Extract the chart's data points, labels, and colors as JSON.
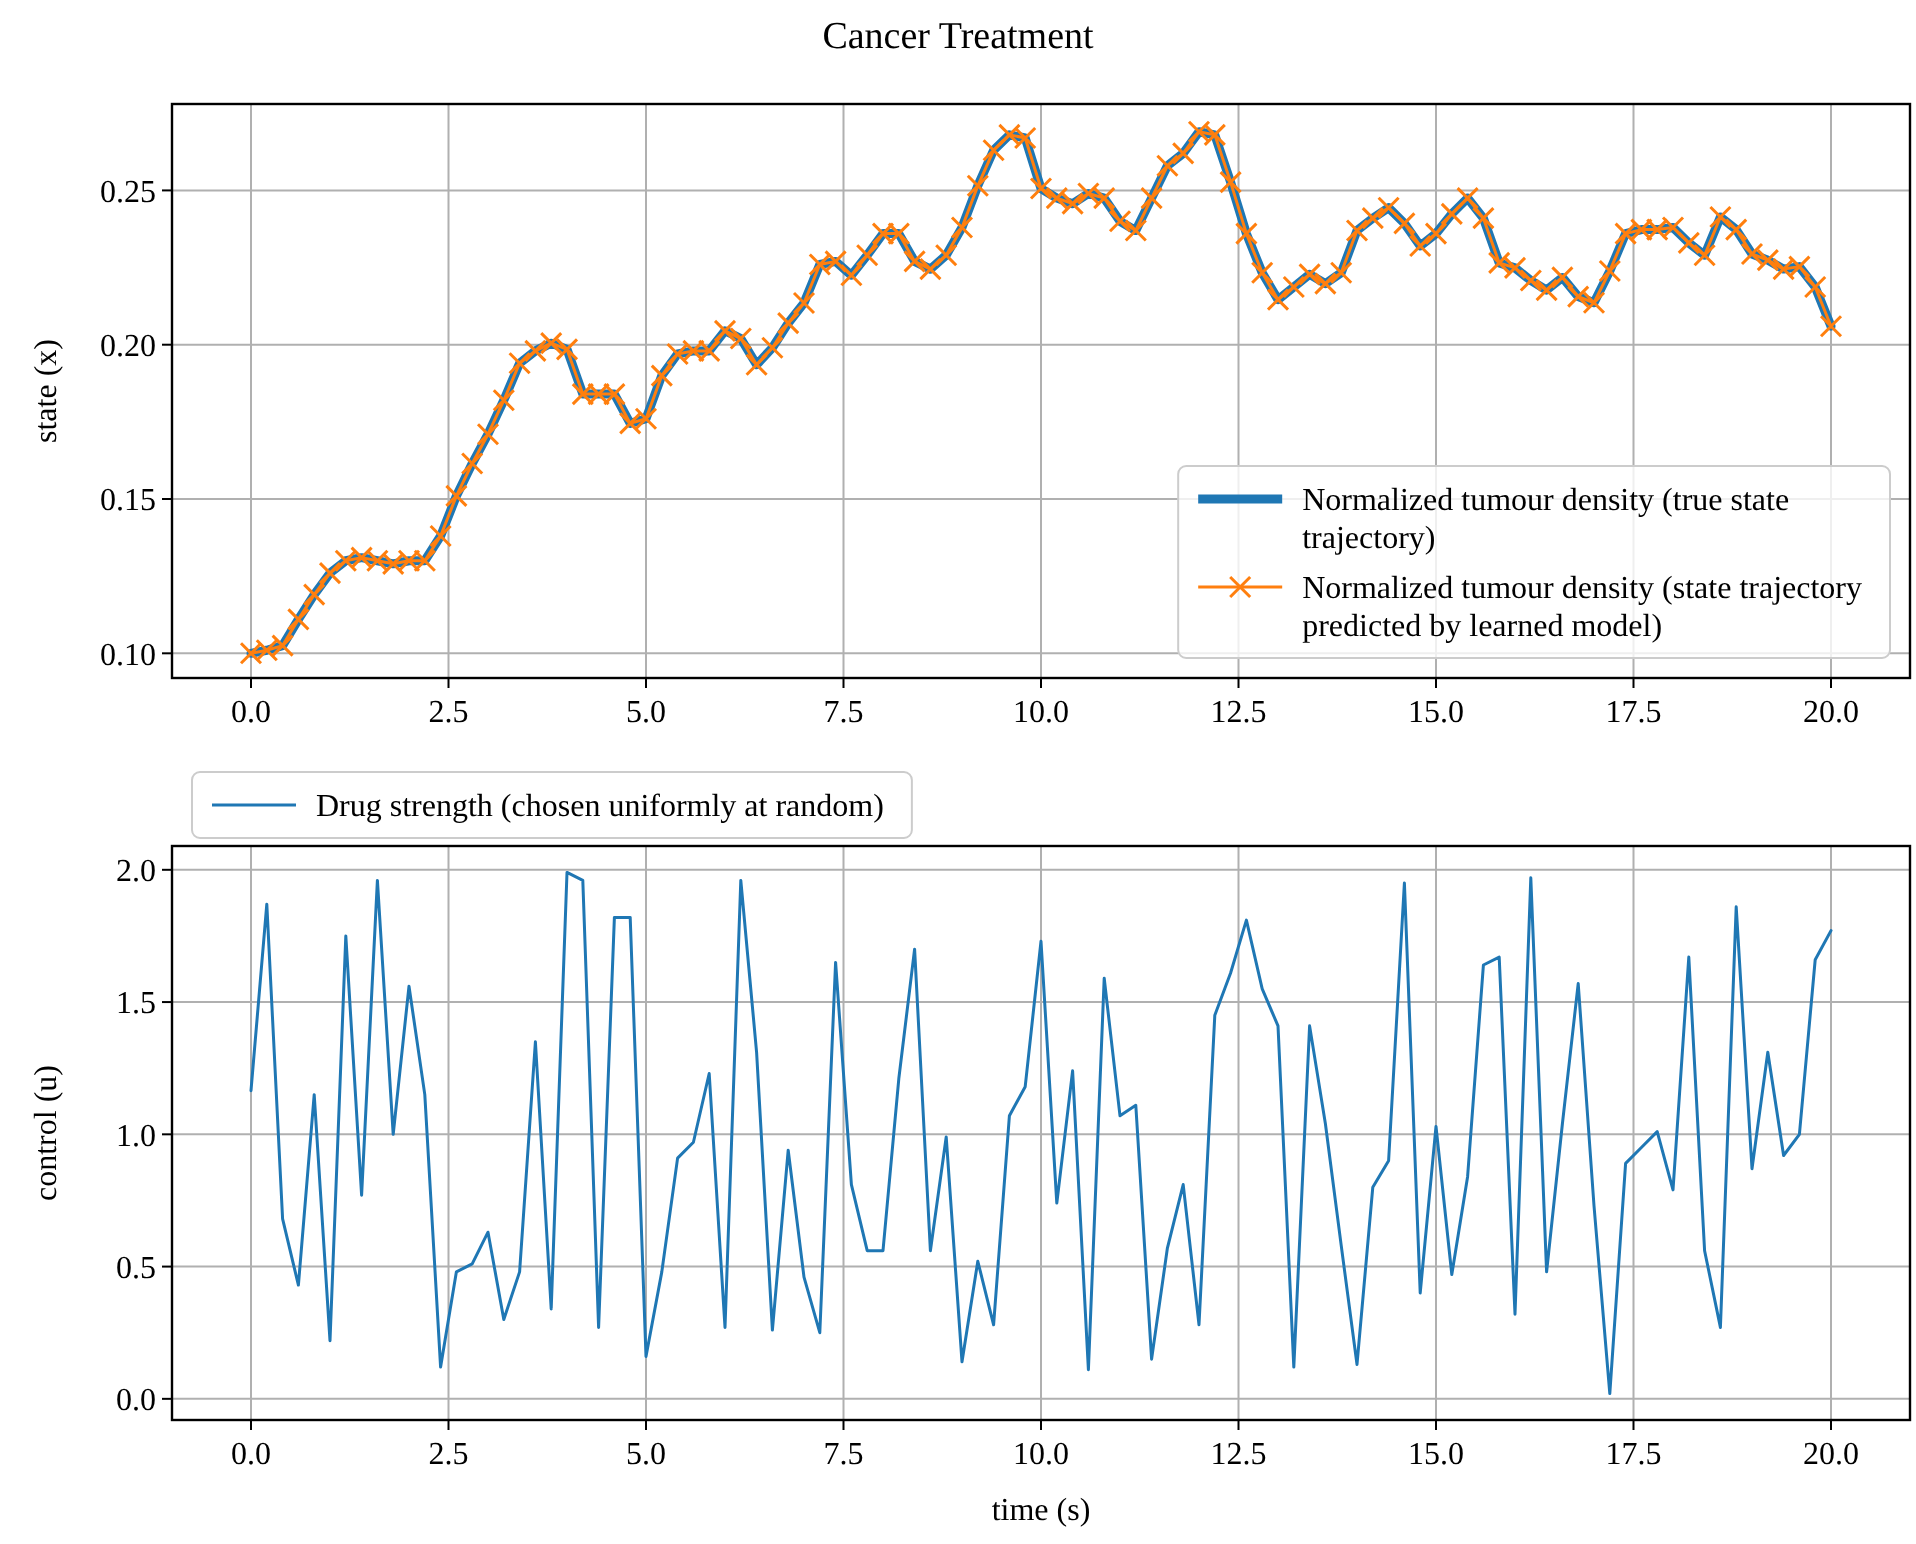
{
  "chart_data": [
    {
      "type": "line",
      "title": "Cancer Treatment",
      "ylabel": "state (x)",
      "x": [
        0,
        0.2,
        0.4,
        0.6,
        0.8,
        1,
        1.2,
        1.4,
        1.6,
        1.8,
        2,
        2.2,
        2.4,
        2.6,
        2.8,
        3,
        3.2,
        3.4,
        3.6,
        3.8,
        4,
        4.2,
        4.4,
        4.6,
        4.8,
        5,
        5.2,
        5.4,
        5.6,
        5.8,
        6,
        6.2,
        6.4,
        6.6,
        6.8,
        7,
        7.2,
        7.4,
        7.6,
        7.8,
        8,
        8.2,
        8.4,
        8.6,
        8.8,
        9,
        9.2,
        9.4,
        9.6,
        9.8,
        10,
        10.2,
        10.4,
        10.6,
        10.8,
        11,
        11.2,
        11.4,
        11.6,
        11.8,
        12,
        12.2,
        12.4,
        12.6,
        12.8,
        13,
        13.2,
        13.4,
        13.6,
        13.8,
        14,
        14.2,
        14.4,
        14.6,
        14.8,
        15,
        15.2,
        15.4,
        15.6,
        15.8,
        16,
        16.2,
        16.4,
        16.6,
        16.8,
        17,
        17.2,
        17.4,
        17.6,
        17.8,
        18,
        18.2,
        18.4,
        18.6,
        18.8,
        19,
        19.2,
        19.4,
        19.6,
        19.8,
        20
      ],
      "series": [
        {
          "name": "Normalized tumour density (true state trajectory)",
          "color": "#1f77b4",
          "marker": "none",
          "values": [
            0.1,
            0.101,
            0.1025,
            0.111,
            0.119,
            0.126,
            0.13,
            0.131,
            0.13,
            0.129,
            0.13,
            0.13,
            0.138,
            0.151,
            0.1615,
            0.171,
            0.182,
            0.194,
            0.198,
            0.2005,
            0.1985,
            0.184,
            0.184,
            0.184,
            0.1745,
            0.176,
            0.19,
            0.197,
            0.198,
            0.198,
            0.2045,
            0.202,
            0.1935,
            0.199,
            0.207,
            0.2135,
            0.226,
            0.227,
            0.2225,
            0.229,
            0.236,
            0.236,
            0.227,
            0.2245,
            0.229,
            0.238,
            0.2515,
            0.263,
            0.268,
            0.267,
            0.2506,
            0.2475,
            0.2457,
            0.249,
            0.2475,
            0.24,
            0.237,
            0.2475,
            0.258,
            0.262,
            0.269,
            0.268,
            0.2527,
            0.236,
            0.2233,
            0.2146,
            0.2187,
            0.2228,
            0.2198,
            0.2233,
            0.237,
            0.241,
            0.2444,
            0.2393,
            0.232,
            0.236,
            0.2424,
            0.2475,
            0.241,
            0.2265,
            0.2249,
            0.2208,
            0.2177,
            0.2218,
            0.2156,
            0.2136,
            0.2239,
            0.236,
            0.2373,
            0.2373,
            0.238,
            0.233,
            0.229,
            0.2414,
            0.2373,
            0.2294,
            0.2274,
            0.2245,
            0.2253,
            0.2187,
            0.206
          ]
        },
        {
          "name": "Normalized tumour density (state trajectory predicted by learned model)",
          "color": "#ff7f0e",
          "marker": "cross",
          "values": [
            0.1,
            0.101,
            0.1025,
            0.111,
            0.119,
            0.126,
            0.13,
            0.131,
            0.13,
            0.129,
            0.13,
            0.13,
            0.138,
            0.151,
            0.1615,
            0.171,
            0.182,
            0.194,
            0.198,
            0.2005,
            0.1985,
            0.184,
            0.184,
            0.184,
            0.1745,
            0.176,
            0.19,
            0.197,
            0.198,
            0.198,
            0.2045,
            0.202,
            0.1935,
            0.199,
            0.207,
            0.2135,
            0.226,
            0.227,
            0.2225,
            0.229,
            0.236,
            0.236,
            0.227,
            0.2245,
            0.229,
            0.238,
            0.2515,
            0.263,
            0.268,
            0.267,
            0.2506,
            0.2475,
            0.2457,
            0.249,
            0.2475,
            0.24,
            0.237,
            0.2475,
            0.258,
            0.262,
            0.269,
            0.268,
            0.2527,
            0.236,
            0.2233,
            0.2146,
            0.2187,
            0.2228,
            0.2198,
            0.2233,
            0.237,
            0.241,
            0.2444,
            0.2393,
            0.232,
            0.236,
            0.2424,
            0.2475,
            0.241,
            0.2265,
            0.2249,
            0.2208,
            0.2177,
            0.2218,
            0.2156,
            0.2136,
            0.2239,
            0.236,
            0.2373,
            0.2373,
            0.238,
            0.233,
            0.229,
            0.2414,
            0.2373,
            0.2294,
            0.2274,
            0.2245,
            0.2253,
            0.2187,
            0.206
          ]
        }
      ],
      "xlim": [
        -1,
        21
      ],
      "xticks": [
        {
          "value": 0,
          "label": "0.0"
        },
        2.5,
        {
          "value": 5,
          "label": "5.0"
        },
        7.5,
        {
          "value": 10,
          "label": "10.0"
        },
        12.5,
        {
          "value": 15,
          "label": "15.0"
        },
        17.5,
        {
          "value": 20,
          "label": "20.0"
        }
      ],
      "ylim": [
        0.092,
        0.278
      ],
      "yticks": [
        {
          "value": 0.1,
          "label": "0.10"
        },
        0.15,
        {
          "value": 0.2,
          "label": "0.20"
        },
        0.25
      ],
      "grid": true,
      "legend": "bottom right"
    },
    {
      "type": "line",
      "xlabel": "time (s)",
      "ylabel": "control (u)",
      "x": [
        0,
        0.2,
        0.4,
        0.6,
        0.8,
        1,
        1.2,
        1.4,
        1.6,
        1.8,
        2,
        2.2,
        2.4,
        2.6,
        2.8,
        3,
        3.2,
        3.4,
        3.6,
        3.8,
        4,
        4.2,
        4.4,
        4.6,
        4.8,
        5,
        5.2,
        5.4,
        5.6,
        5.8,
        6,
        6.2,
        6.4,
        6.6,
        6.8,
        7,
        7.2,
        7.4,
        7.6,
        7.8,
        8,
        8.2,
        8.4,
        8.6,
        8.8,
        9,
        9.2,
        9.4,
        9.6,
        9.8,
        10,
        10.2,
        10.4,
        10.6,
        10.8,
        11,
        11.2,
        11.4,
        11.6,
        11.8,
        12,
        12.2,
        12.4,
        12.6,
        12.8,
        13,
        13.2,
        13.4,
        13.6,
        13.8,
        14,
        14.2,
        14.4,
        14.6,
        14.8,
        15,
        15.2,
        15.4,
        15.6,
        15.8,
        16,
        16.2,
        16.4,
        16.6,
        16.8,
        17,
        17.2,
        17.4,
        17.6,
        17.8,
        18,
        18.2,
        18.4,
        18.6,
        18.8,
        19,
        19.2,
        19.4,
        19.6,
        19.8,
        20
      ],
      "series": [
        {
          "name": "Drug strength (chosen uniformly at random)",
          "color": "#1f77b4",
          "values": [
            1.165,
            1.87,
            0.68,
            0.43,
            1.15,
            0.22,
            1.75,
            0.77,
            1.96,
            1.0,
            1.56,
            1.15,
            0.12,
            0.48,
            0.51,
            0.63,
            0.3,
            0.48,
            1.35,
            0.34,
            1.99,
            1.96,
            0.27,
            1.82,
            1.82,
            0.16,
            0.48,
            0.91,
            0.97,
            1.23,
            0.27,
            1.96,
            1.31,
            0.26,
            0.94,
            0.46,
            0.25,
            1.65,
            0.81,
            0.56,
            0.56,
            1.21,
            1.7,
            0.56,
            0.99,
            0.14,
            0.52,
            0.28,
            1.07,
            1.18,
            1.73,
            0.74,
            1.24,
            0.11,
            1.59,
            1.07,
            1.11,
            0.15,
            0.57,
            0.81,
            0.28,
            1.45,
            1.61,
            1.81,
            1.55,
            1.41,
            0.12,
            1.41,
            1.04,
            0.58,
            0.13,
            0.8,
            0.9,
            1.95,
            0.4,
            1.03,
            0.47,
            0.84,
            1.64,
            1.67,
            0.32,
            1.97,
            0.48,
            1.04,
            1.57,
            0.73,
            0.02,
            0.89,
            0.95,
            1.01,
            0.79,
            1.67,
            0.56,
            0.27,
            1.86,
            0.87,
            1.31,
            0.92,
            1.0,
            1.66,
            1.77
          ]
        }
      ],
      "xlim": [
        -1,
        21
      ],
      "xticks": [
        {
          "value": 0,
          "label": "0.0"
        },
        2.5,
        {
          "value": 5,
          "label": "5.0"
        },
        7.5,
        {
          "value": 10,
          "label": "10.0"
        },
        12.5,
        {
          "value": 15,
          "label": "15.0"
        },
        17.5,
        {
          "value": 20,
          "label": "20.0"
        }
      ],
      "ylim": [
        -0.08,
        2.09
      ],
      "yticks": [
        {
          "value": 0,
          "label": "0.0"
        },
        0.5,
        {
          "value": 1,
          "label": "1.0"
        },
        1.5,
        {
          "value": 2,
          "label": "2.0"
        }
      ],
      "grid": true,
      "legend": "top"
    }
  ]
}
